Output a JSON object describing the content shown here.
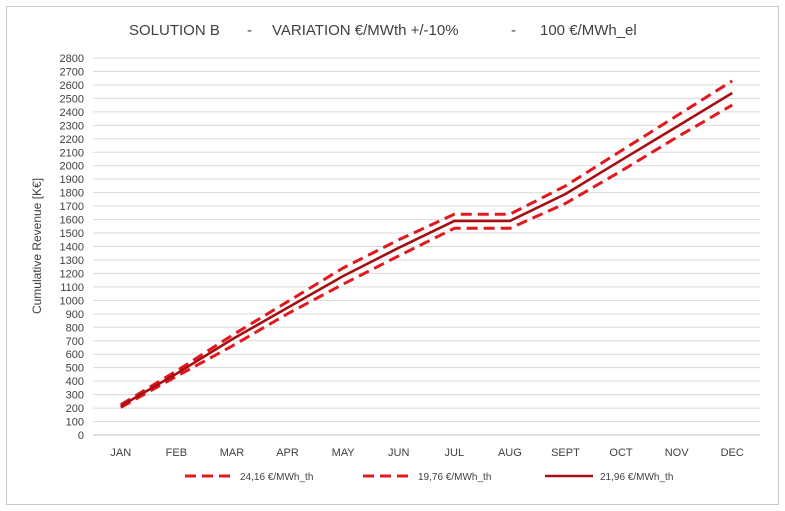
{
  "chart_data": {
    "type": "line",
    "title_parts": [
      "SOLUTION B",
      "-",
      "VARIATION €/MWth +/-10%",
      "-",
      "100 €/MWh_el"
    ],
    "xlabel": "",
    "ylabel": "Cumulative Revenue [K€]",
    "categories": [
      "JAN",
      "FEB",
      "MAR",
      "APR",
      "MAY",
      "JUN",
      "JUL",
      "AUG",
      "SEPT",
      "OCT",
      "NOV",
      "DEC"
    ],
    "y_ticks": [
      "0",
      "100",
      "200",
      "300",
      "400",
      "500",
      "600",
      "700",
      "800",
      "900",
      "1000",
      "1100",
      "1200",
      "1300",
      "1400",
      "1500",
      "1600",
      "1700",
      "1800",
      "1900",
      "2000",
      "2100",
      "2200",
      "2300",
      "2400",
      "2500",
      "2600",
      "2700",
      "2800"
    ],
    "ylim": [
      0,
      2800
    ],
    "grid": true,
    "legend_position": "bottom",
    "series": [
      {
        "name": "24,16 €/MWh_th",
        "style": "dashed",
        "color": "#e3181f",
        "values": [
          225,
          475,
          740,
          990,
          1240,
          1450,
          1640,
          1640,
          1850,
          2110,
          2370,
          2630
        ]
      },
      {
        "name": "19,76 €/MWh_th",
        "style": "dashed",
        "color": "#e3181f",
        "values": [
          205,
          435,
          660,
          900,
          1120,
          1330,
          1535,
          1535,
          1720,
          1960,
          2210,
          2450
        ]
      },
      {
        "name": "21,96 €/MWh_th",
        "style": "solid",
        "color": "#a50f12",
        "values": [
          215,
          455,
          710,
          945,
          1180,
          1390,
          1590,
          1590,
          1790,
          2040,
          2290,
          2540
        ]
      }
    ]
  }
}
